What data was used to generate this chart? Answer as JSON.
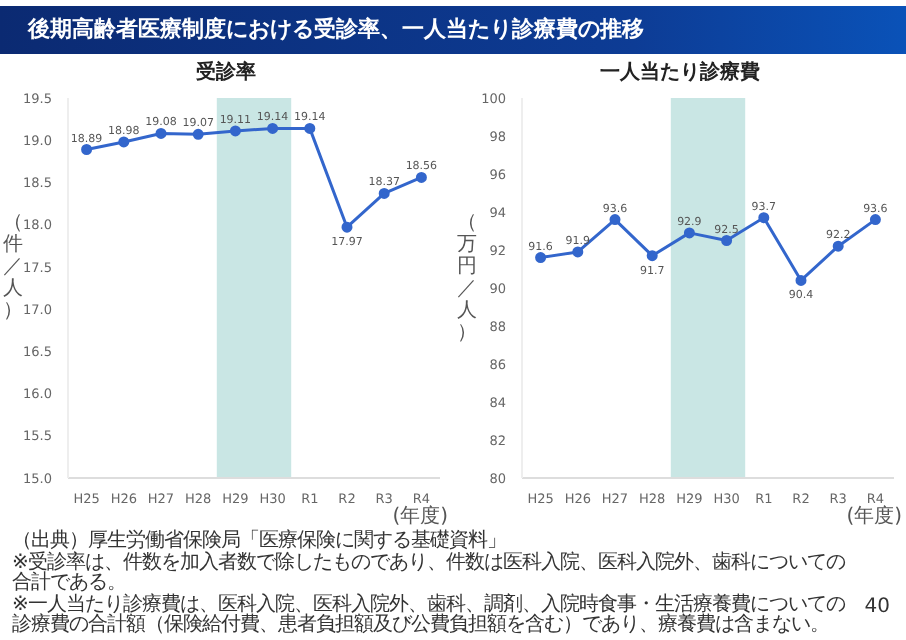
{
  "chart_data": [
    {
      "type": "line",
      "title": "受診率",
      "ylabel": "（件／人）",
      "xlabel": "(年度)",
      "categories": [
        "H25",
        "H26",
        "H27",
        "H28",
        "H29",
        "H30",
        "R1",
        "R2",
        "R3",
        "R4"
      ],
      "series": [
        {
          "color": "#3366cc",
          "values": [
            18.89,
            18.98,
            19.08,
            19.07,
            19.11,
            19.14,
            19.14,
            17.97,
            18.37,
            18.56
          ]
        }
      ],
      "ylim": [
        15,
        19.5
      ],
      "yticks": [
        {
          "value": 15,
          "label": "15.0"
        },
        15.5,
        {
          "value": 16,
          "label": "16.0"
        },
        16.5,
        {
          "value": 17,
          "label": "17.0"
        },
        17.5,
        {
          "value": 18,
          "label": "18.0"
        },
        18.5,
        {
          "value": 19,
          "label": "19.0"
        },
        19.5
      ],
      "grid": false,
      "marker": "circle",
      "data_labels": true,
      "legend": false,
      "bands": [
        {
          "axis": "x",
          "from": "H29",
          "to": "H30",
          "color": "#c9e6e4"
        }
      ],
      "annotations": [
        "後期高齢者医療制度における受診率、一人当たり診療費の推移",
        "（出典）厚生労働省保険局「医療保険に関する基礎資料」",
        "※受診率は、件数を加入者数で除したものであり、件数は医科入院、医科入院外、歯科についての合計である。",
        "※一人当たり診療費は、医科入院、医科入院外、歯科、調剤、入院時食事・生活療養費についての診療費の合計額（保険給付費、患者負担額及び公費負担額を含む）であり、療養費は含まない。",
        "40"
      ]
    },
    {
      "type": "line",
      "title": "一人当たり診療費",
      "ylabel": "（万円／人）",
      "xlabel": "(年度)",
      "categories": [
        "H25",
        "H26",
        "H27",
        "H28",
        "H29",
        "H30",
        "R1",
        "R2",
        "R3",
        "R4"
      ],
      "series": [
        {
          "color": "#3366cc",
          "values": [
            91.6,
            91.9,
            93.6,
            91.7,
            92.9,
            92.5,
            93.7,
            90.4,
            92.2,
            93.6
          ]
        }
      ],
      "ylim": [
        80,
        100
      ],
      "yticks": [
        80,
        82,
        84,
        86,
        88,
        90,
        92,
        94,
        96,
        98,
        100
      ],
      "grid": false,
      "marker": "circle",
      "data_labels": true,
      "legend": false,
      "bands": [
        {
          "axis": "x",
          "from": "H29",
          "to": "H30",
          "color": "#c9e6e4"
        }
      ]
    }
  ]
}
